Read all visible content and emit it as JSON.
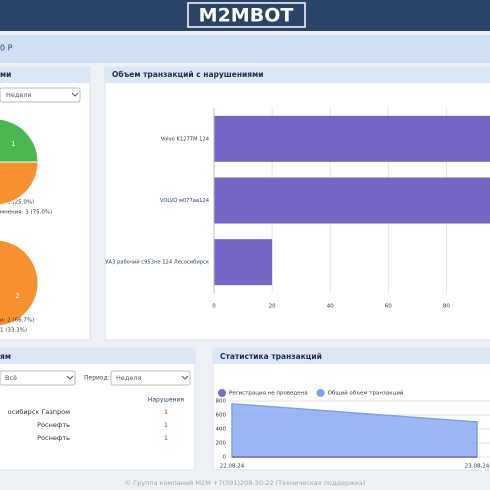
{
  "header": {
    "logo": "M2MBOT",
    "balance": "0 Р"
  },
  "panels": {
    "left": {
      "title": "ми",
      "period": "Неделя"
    },
    "bottom_left": {
      "title": "ям",
      "filter": "Всё",
      "period_label": "Период:",
      "period": "Неделя",
      "table": {
        "columns": [
          "Нарушения"
        ],
        "rows": [
          [
            "осибирск Газпром",
            1
          ],
          [
            "Роснефть",
            1
          ],
          [
            "Роснефть",
            1
          ]
        ]
      }
    }
  },
  "footer": "© Группа компаний М2М +7(391)208-30-22 (Техническая поддержка)",
  "chart_data": [
    {
      "type": "pie",
      "categories": [
        "и: 1 (25.0%)",
        "мнения: 3 (75.0%)"
      ],
      "values": [
        1,
        3
      ],
      "colors": [
        "#4cb651",
        "#f7902f"
      ]
    },
    {
      "type": "pie",
      "categories": [
        "и: 2 (66.7%)",
        "1 (33.3%)"
      ],
      "values": [
        2,
        1
      ],
      "colors": [
        "#f7902f",
        "#4cb651"
      ]
    },
    {
      "type": "bar",
      "orientation": "horizontal",
      "title": "Объем транзакций с нарушениями",
      "categories": [
        "Volvo K127TM 124",
        "VOLVO м077аа124",
        "УАЗ рабочий с953не 124 Лесосибирск"
      ],
      "values": [
        95,
        95,
        20
      ],
      "color": "#7765c4",
      "xlim": [
        0,
        95
      ],
      "xticks": [
        0,
        20,
        40,
        60,
        80
      ],
      "grid": true
    },
    {
      "type": "area",
      "title": "Статистика транзакций",
      "x": [
        "22.08.24",
        "23.08.24"
      ],
      "series": [
        {
          "name": "Регистрация не проведена",
          "color": "#7b6cc9",
          "values": [
            0,
            0
          ]
        },
        {
          "name": "Общий объем транзакций",
          "color": "#7aa0f0",
          "values": [
            760,
            500
          ]
        }
      ],
      "ylim": [
        0,
        800
      ],
      "yticks": [
        0,
        200,
        400,
        600,
        800
      ],
      "grid": true
    }
  ]
}
